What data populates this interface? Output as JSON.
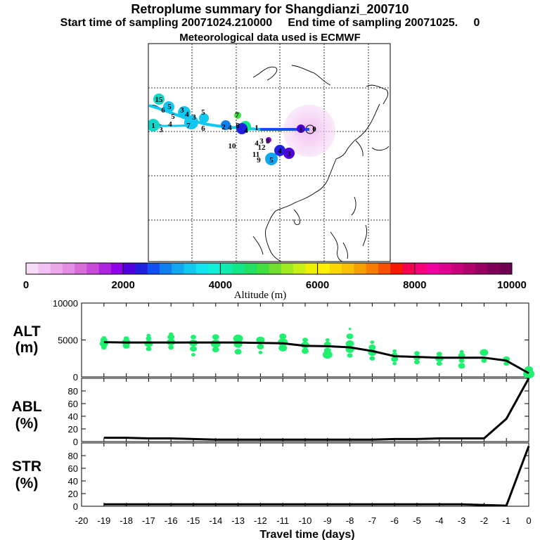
{
  "header": {
    "title": "Retroplume summary for Shangdianzi_200710",
    "sampling": "Start time of sampling 20071024.210000     End time of sampling 20071025.     0",
    "met": "Meteorological data used is ECMWF"
  },
  "colorbar": {
    "colors": [
      "#f7dcf7",
      "#f2c3f2",
      "#ecaaec",
      "#e48de4",
      "#d66dd9",
      "#c84ad8",
      "#b024e0",
      "#9000e8",
      "#5000e0",
      "#2020e0",
      "#1050f0",
      "#1080f0",
      "#10a8f0",
      "#10c8f0",
      "#10e4f0",
      "#10f0d8",
      "#10ecb0",
      "#10e888",
      "#20e060",
      "#40e040",
      "#70e030",
      "#a0e820",
      "#c8f010",
      "#eef000",
      "#fff000",
      "#fcd800",
      "#f8c000",
      "#f8a000",
      "#f87c00",
      "#f85000",
      "#f81800",
      "#f80050",
      "#f8007c",
      "#f000a0",
      "#e00090",
      "#c8007c",
      "#b0006c",
      "#980060",
      "#800058",
      "#700050"
    ],
    "tick_labels": [
      "0",
      "2000",
      "4000",
      "6000",
      "8000",
      "10000"
    ],
    "label": "Altitude (m)"
  },
  "map": {
    "labels": [
      {
        "t": "15",
        "x": 226,
        "y": 141,
        "c": "#10d8c8"
      },
      {
        "t": "6",
        "x": 232,
        "y": 156,
        "c": "#10c8f0"
      },
      {
        "t": "5",
        "x": 241,
        "y": 151,
        "c": "#10c8f0"
      },
      {
        "t": "3",
        "x": 259,
        "y": 156,
        "c": "#10c8f0"
      },
      {
        "t": "4",
        "x": 266,
        "y": 162,
        "c": "#10c8f0"
      },
      {
        "t": "3",
        "x": 276,
        "y": 166,
        "c": "#10c8f0"
      },
      {
        "t": "5",
        "x": 246,
        "y": 165,
        "c": "#10c8f0"
      },
      {
        "t": "1",
        "x": 218,
        "y": 178,
        "c": "#10d8c8"
      },
      {
        "t": "3",
        "x": 229,
        "y": 184,
        "c": "#10c8f0"
      },
      {
        "t": "4",
        "x": 242,
        "y": 176,
        "c": "#10c8f0"
      },
      {
        "t": "7",
        "x": 268,
        "y": 178,
        "c": "#10c8f0"
      },
      {
        "t": "6",
        "x": 289,
        "y": 182,
        "c": "#10c8f0"
      },
      {
        "t": "5",
        "x": 289,
        "y": 159,
        "c": "#10c8f0"
      },
      {
        "t": "2",
        "x": 318,
        "y": 180,
        "c": "#1080f0"
      },
      {
        "t": "4",
        "x": 327,
        "y": 181,
        "c": "#1080f0"
      },
      {
        "t": "8",
        "x": 338,
        "y": 178,
        "c": "#10e888"
      },
      {
        "t": "7",
        "x": 337,
        "y": 163,
        "c": "#40e040"
      },
      {
        "t": "1",
        "x": 365,
        "y": 181,
        "c": "#2020e0"
      },
      {
        "t": "4",
        "x": 350,
        "y": 185,
        "c": "#2020e0"
      },
      {
        "t": "10",
        "x": 330,
        "y": 207,
        "c": "#1080f0"
      },
      {
        "t": "3",
        "x": 372,
        "y": 200,
        "c": "#2020e0"
      },
      {
        "t": "4",
        "x": 365,
        "y": 203,
        "c": "#1050f0"
      },
      {
        "t": "8",
        "x": 381,
        "y": 200,
        "c": "#5000e0"
      },
      {
        "t": "12",
        "x": 372,
        "y": 209,
        "c": "#1080f0"
      },
      {
        "t": "11",
        "x": 364,
        "y": 219,
        "c": "#1080f0"
      },
      {
        "t": "9",
        "x": 368,
        "y": 227,
        "c": "#1080f0"
      },
      {
        "t": "5",
        "x": 386,
        "y": 227,
        "c": "#10a8f0"
      },
      {
        "t": "4",
        "x": 398,
        "y": 214,
        "c": "#2020e0"
      },
      {
        "t": "3",
        "x": 411,
        "y": 218,
        "c": "#5000e0"
      },
      {
        "t": "1",
        "x": 428,
        "y": 183,
        "c": "#5000e0"
      },
      {
        "t": "0",
        "x": 447,
        "y": 183,
        "c": "#e48de4"
      }
    ]
  },
  "panels": {
    "alt": {
      "label_top": "ALT",
      "label_bot": "(m)"
    },
    "abl": {
      "label_top": "ABL",
      "label_bot": "(%)"
    },
    "str": {
      "label_top": "STR",
      "label_bot": "(%)"
    },
    "xlabel": "Travel time (days)"
  },
  "chart_data": {
    "type": "line",
    "title": "Retroplume summary for Shangdianzi_200710",
    "xlabel": "Travel time (days)",
    "xlim": [
      -20,
      0
    ],
    "x_ticks": [
      -20,
      -19,
      -18,
      -17,
      -16,
      -15,
      -14,
      -13,
      -12,
      -11,
      -10,
      -9,
      -8,
      -7,
      -6,
      -5,
      -4,
      -3,
      -2,
      -1,
      0
    ],
    "x": [
      -19,
      -18,
      -17,
      -16,
      -15,
      -14,
      -13,
      -12,
      -11,
      -10,
      -9,
      -8,
      -7,
      -6,
      -5,
      -4,
      -3,
      -2,
      -1,
      0
    ],
    "series": [
      {
        "name": "ALT",
        "unit": "m",
        "ylim": [
          0,
          10000
        ],
        "yticks": [
          0,
          5000,
          10000
        ],
        "values": [
          4700,
          4650,
          4650,
          4650,
          4650,
          4650,
          4650,
          4600,
          4550,
          4200,
          4150,
          4000,
          3500,
          2800,
          2700,
          2600,
          2600,
          2600,
          2200,
          500
        ],
        "clusters": [
          {
            "x": -19,
            "alts": [
              4000,
              4500,
              5000,
              5300
            ],
            "sizes": [
              4,
              6,
              5,
              3
            ]
          },
          {
            "x": -18,
            "alts": [
              4200,
              4700,
              5200
            ],
            "sizes": [
              5,
              6,
              4
            ]
          },
          {
            "x": -17,
            "alts": [
              3800,
              4500,
              5200,
              5600
            ],
            "sizes": [
              4,
              6,
              4,
              3
            ]
          },
          {
            "x": -16,
            "alts": [
              4000,
              4700,
              5400,
              5800
            ],
            "sizes": [
              4,
              6,
              5,
              3
            ]
          },
          {
            "x": -15,
            "alts": [
              3000,
              3800,
              4600,
              5400
            ],
            "sizes": [
              3,
              5,
              6,
              4
            ]
          },
          {
            "x": -14,
            "alts": [
              3700,
              4500,
              5400
            ],
            "sizes": [
              5,
              7,
              5
            ]
          },
          {
            "x": -13,
            "alts": [
              3400,
              4400,
              5200
            ],
            "sizes": [
              5,
              6,
              7
            ]
          },
          {
            "x": -12,
            "alts": [
              3300,
              4100,
              5000
            ],
            "sizes": [
              3,
              5,
              6
            ]
          },
          {
            "x": -11,
            "alts": [
              3900,
              4700,
              5500
            ],
            "sizes": [
              6,
              7,
              5
            ]
          },
          {
            "x": -10,
            "alts": [
              3500,
              4300,
              5000
            ],
            "sizes": [
              5,
              6,
              4
            ]
          },
          {
            "x": -9,
            "alts": [
              3000,
              3600,
              4400,
              5000
            ],
            "sizes": [
              7,
              5,
              5,
              3
            ]
          },
          {
            "x": -8,
            "alts": [
              2900,
              3700,
              4500,
              5500,
              6500
            ],
            "sizes": [
              4,
              6,
              6,
              5,
              2
            ]
          },
          {
            "x": -7,
            "alts": [
              2500,
              3300,
              4000,
              4700
            ],
            "sizes": [
              4,
              6,
              5,
              3
            ]
          },
          {
            "x": -6,
            "alts": [
              1800,
              2400,
              3000,
              3500
            ],
            "sizes": [
              3,
              5,
              4,
              3
            ]
          },
          {
            "x": -5,
            "alts": [
              2000,
              2600,
              3200
            ],
            "sizes": [
              4,
              5,
              4
            ]
          },
          {
            "x": -4,
            "alts": [
              1800,
              2500,
              3100
            ],
            "sizes": [
              4,
              6,
              4
            ]
          },
          {
            "x": -3,
            "alts": [
              1500,
              2200,
              2900,
              3400
            ],
            "sizes": [
              5,
              4,
              5,
              3
            ]
          },
          {
            "x": -2,
            "alts": [
              2200,
              3300
            ],
            "sizes": [
              4,
              6
            ]
          },
          {
            "x": -1,
            "alts": [
              1800,
              2400
            ],
            "sizes": [
              4,
              5
            ]
          },
          {
            "x": 0,
            "alts": [
              400,
              1000
            ],
            "sizes": [
              8,
              6
            ]
          }
        ]
      },
      {
        "name": "ABL",
        "unit": "%",
        "ylim": [
          0,
          100
        ],
        "yticks": [
          0,
          20,
          40,
          60,
          80
        ],
        "values": [
          6,
          6,
          5,
          5,
          4,
          3,
          3,
          3,
          3,
          3,
          3,
          3,
          3,
          4,
          4,
          5,
          5,
          5,
          36,
          100
        ]
      },
      {
        "name": "STR",
        "unit": "%",
        "ylim": [
          0,
          100
        ],
        "yticks": [
          0,
          20,
          40,
          60,
          80
        ],
        "values": [
          3,
          3,
          3,
          3,
          3,
          3,
          3,
          3,
          3,
          3,
          3,
          3,
          3,
          3,
          3,
          3,
          3,
          2,
          1,
          95
        ]
      }
    ]
  }
}
